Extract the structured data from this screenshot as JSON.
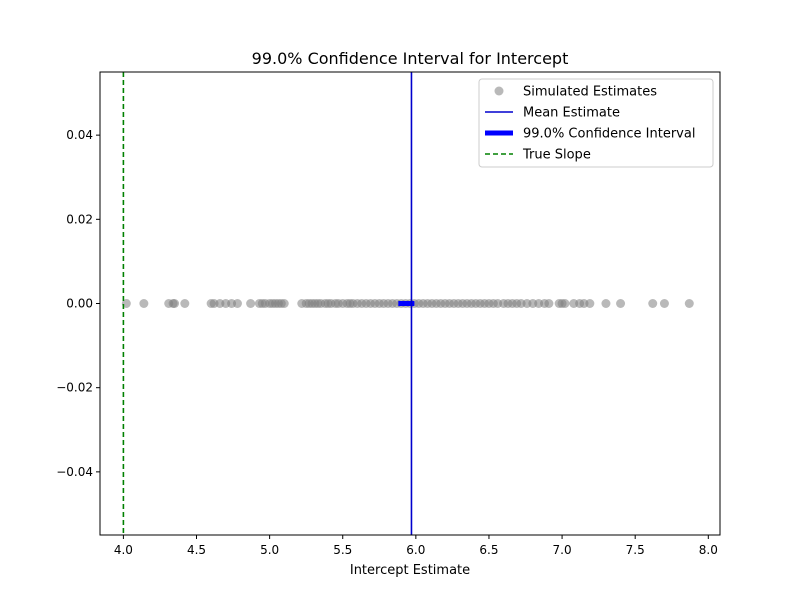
{
  "chart_data": {
    "type": "scatter",
    "title": "99.0% Confidence Interval for Intercept",
    "xlabel": "Intercept Estimate",
    "ylabel": "",
    "xlim": [
      3.84,
      8.08
    ],
    "ylim": [
      -0.055,
      0.055
    ],
    "x_ticks": [
      "4.0",
      "4.5",
      "5.0",
      "5.5",
      "6.0",
      "6.5",
      "7.0",
      "7.5",
      "8.0"
    ],
    "y_ticks": [
      "0.04",
      "0.02",
      "0.00",
      "−0.02",
      "−0.04"
    ],
    "grid": false,
    "legend_position": "top-right",
    "colors": {
      "points": "#808080",
      "mean_line": "#0000cd",
      "ci": "#0000ff",
      "true_line": "#008000"
    },
    "series": [
      {
        "name": "Simulated Estimates",
        "kind": "scatter",
        "x": [
          4.02,
          4.14,
          4.31,
          4.34,
          4.35,
          4.42,
          4.6,
          4.62,
          4.66,
          4.7,
          4.74,
          4.78,
          4.87,
          4.93,
          4.95,
          4.97,
          5.0,
          5.02,
          5.04,
          5.06,
          5.08,
          5.1,
          5.22,
          5.25,
          5.27,
          5.29,
          5.31,
          5.33,
          5.35,
          5.38,
          5.4,
          5.42,
          5.45,
          5.47,
          5.5,
          5.53,
          5.55,
          5.57,
          5.6,
          5.63,
          5.66,
          5.69,
          5.72,
          5.75,
          5.78,
          5.81,
          5.84,
          5.87,
          5.9,
          5.93,
          5.96,
          5.99,
          6.02,
          6.05,
          6.08,
          6.11,
          6.14,
          6.17,
          6.2,
          6.23,
          6.26,
          6.29,
          6.32,
          6.35,
          6.38,
          6.41,
          6.44,
          6.47,
          6.5,
          6.53,
          6.56,
          6.6,
          6.63,
          6.66,
          6.69,
          6.72,
          6.76,
          6.8,
          6.84,
          6.88,
          6.91,
          6.98,
          7.0,
          7.02,
          7.08,
          7.12,
          7.15,
          7.19,
          7.3,
          7.4,
          7.62,
          7.7,
          7.87
        ],
        "y": [
          0,
          0,
          0,
          0,
          0,
          0,
          0,
          0,
          0,
          0,
          0,
          0,
          0,
          0,
          0,
          0,
          0,
          0,
          0,
          0,
          0,
          0,
          0,
          0,
          0,
          0,
          0,
          0,
          0,
          0,
          0,
          0,
          0,
          0,
          0,
          0,
          0,
          0,
          0,
          0,
          0,
          0,
          0,
          0,
          0,
          0,
          0,
          0,
          0,
          0,
          0,
          0,
          0,
          0,
          0,
          0,
          0,
          0,
          0,
          0,
          0,
          0,
          0,
          0,
          0,
          0,
          0,
          0,
          0,
          0,
          0,
          0,
          0,
          0,
          0,
          0,
          0,
          0,
          0,
          0,
          0,
          0,
          0,
          0,
          0,
          0,
          0,
          0,
          0,
          0,
          0,
          0,
          0
        ]
      },
      {
        "name": "Mean Estimate",
        "kind": "vline",
        "x": 5.97
      },
      {
        "name": "99.0% Confidence Interval",
        "kind": "interval",
        "x": [
          5.88,
          5.99
        ],
        "y": 0
      },
      {
        "name": "True Slope",
        "kind": "vline",
        "x": 4.0
      }
    ]
  }
}
